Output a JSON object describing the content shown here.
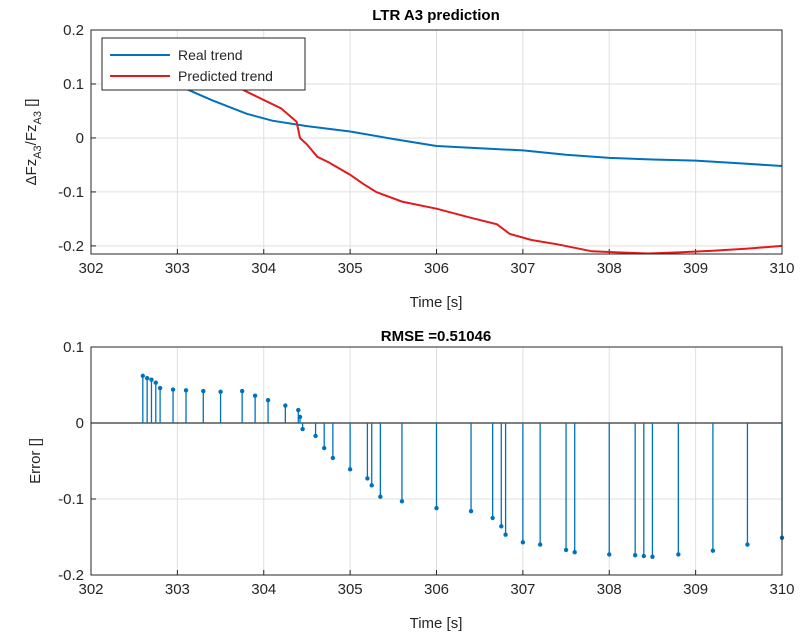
{
  "chart_data": [
    {
      "type": "line",
      "title": "LTR A3 prediction",
      "xlabel": "Time [s]",
      "ylabel": {
        "prefix": "ΔFz",
        "sub1": "A3",
        "mid": "/Fz",
        "sub2": "A3",
        "unit": " []"
      },
      "xlim": [
        302,
        310
      ],
      "ylim": [
        -0.215,
        0.2
      ],
      "xticks": [
        302,
        303,
        304,
        305,
        306,
        307,
        308,
        309,
        310
      ],
      "yticks": [
        0.2,
        0.1,
        0,
        -0.1,
        -0.2
      ],
      "ytick_labels": [
        "0.2",
        "0.1",
        "0",
        "-0.1",
        "-0.2"
      ],
      "grid": true,
      "legend": "top-left",
      "series": [
        {
          "name": "Real trend",
          "color": "#0072BD",
          "x": [
            302.6,
            303.0,
            303.4,
            303.8,
            304.1,
            304.5,
            305.0,
            305.5,
            306.0,
            306.5,
            307.0,
            307.5,
            308.0,
            308.5,
            309.0,
            309.5,
            310.0
          ],
          "y": [
            0.155,
            0.098,
            0.07,
            0.045,
            0.032,
            0.022,
            0.012,
            -0.002,
            -0.015,
            -0.019,
            -0.023,
            -0.031,
            -0.037,
            -0.04,
            -0.042,
            -0.047,
            -0.052
          ]
        },
        {
          "name": "Predicted trend",
          "color": "#E31A1C",
          "x": [
            302.62,
            302.9,
            303.15,
            303.5,
            303.85,
            304.2,
            304.38,
            304.42,
            304.5,
            304.62,
            304.75,
            305.0,
            305.15,
            305.3,
            305.6,
            306.0,
            306.4,
            306.7,
            306.85,
            307.1,
            307.4,
            307.8,
            308.1,
            308.45,
            308.8,
            309.2,
            309.6,
            310.0
          ],
          "y": [
            0.18,
            0.162,
            0.15,
            0.11,
            0.082,
            0.055,
            0.03,
            0.0,
            -0.012,
            -0.035,
            -0.045,
            -0.068,
            -0.085,
            -0.1,
            -0.118,
            -0.131,
            -0.148,
            -0.16,
            -0.178,
            -0.189,
            -0.197,
            -0.21,
            -0.212,
            -0.214,
            -0.212,
            -0.209,
            -0.205,
            -0.2
          ]
        }
      ]
    },
    {
      "type": "stem",
      "title": "RMSE =0.51046",
      "xlabel": "Time [s]",
      "ylabel": "Error []",
      "xlim": [
        302,
        310
      ],
      "ylim": [
        -0.2,
        0.1
      ],
      "xticks": [
        302,
        303,
        304,
        305,
        306,
        307,
        308,
        309,
        310
      ],
      "yticks": [
        0.1,
        0,
        -0.1,
        -0.2
      ],
      "ytick_labels": [
        "0.1",
        "0",
        "-0.1",
        "-0.2"
      ],
      "grid": true,
      "series": [
        {
          "color": "#0072BD",
          "x": [
            302.6,
            302.65,
            302.7,
            302.75,
            302.8,
            302.95,
            303.1,
            303.3,
            303.5,
            303.75,
            303.9,
            304.05,
            304.25,
            304.4,
            304.42,
            304.45,
            304.6,
            304.7,
            304.8,
            305.0,
            305.2,
            305.25,
            305.35,
            305.6,
            306.0,
            306.4,
            306.65,
            306.75,
            306.8,
            307.0,
            307.2,
            307.5,
            307.6,
            308.0,
            308.3,
            308.4,
            308.5,
            308.8,
            309.2,
            309.6,
            310.0
          ],
          "y": [
            0.062,
            0.059,
            0.057,
            0.053,
            0.046,
            0.044,
            0.043,
            0.042,
            0.041,
            0.042,
            0.036,
            0.03,
            0.023,
            0.017,
            0.008,
            -0.008,
            -0.017,
            -0.033,
            -0.046,
            -0.061,
            -0.073,
            -0.082,
            -0.097,
            -0.103,
            -0.112,
            -0.116,
            -0.125,
            -0.136,
            -0.147,
            -0.157,
            -0.16,
            -0.167,
            -0.17,
            -0.173,
            -0.174,
            -0.175,
            -0.176,
            -0.173,
            -0.168,
            -0.16,
            -0.151
          ]
        }
      ]
    }
  ]
}
